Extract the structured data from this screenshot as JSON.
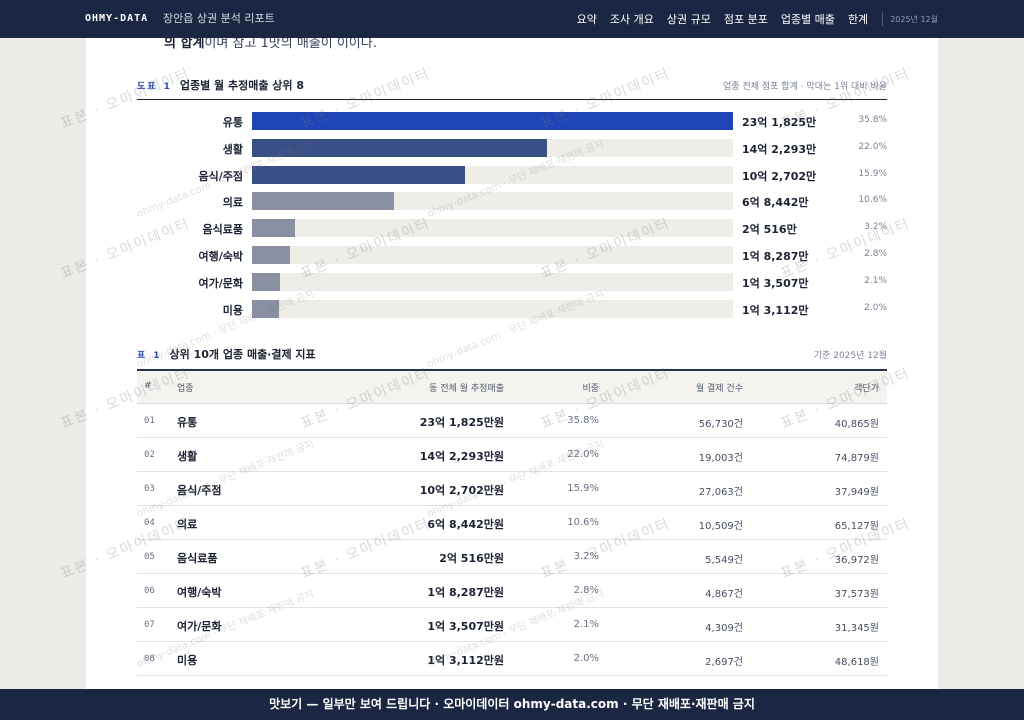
{
  "header": {
    "brand": "OHMY-DATA",
    "report_title": "장안읍 상권 분석 리포트",
    "nav": [
      "요약",
      "조사 개요",
      "상권 규모",
      "점포 분포",
      "업종별 매출",
      "한계"
    ],
    "date": "2025년 12월"
  },
  "intro": {
    "bold": "의 합계",
    "rest": "이며 참고 1맛의 매출이 이이다."
  },
  "figure1": {
    "tag": "도표",
    "num": "1",
    "title": "업종별 월 추정매출 상위 8",
    "note": "업종 전체 점포 합계 · 막대는 1위 대비 비율"
  },
  "chart_data": {
    "type": "bar",
    "orientation": "horizontal",
    "title": "업종별 월 추정매출 상위 8",
    "categories": [
      "유통",
      "생활",
      "음식/주점",
      "의료",
      "음식료품",
      "여행/숙박",
      "여가/문화",
      "미용"
    ],
    "value_labels": [
      "23억 1,825만",
      "14억 2,293만",
      "10억 2,702만",
      "6억 8,442만",
      "2억 516만",
      "1억 8,287만",
      "1억 3,507만",
      "1억 3,112만"
    ],
    "values": [
      231825,
      142293,
      102702,
      68442,
      20516,
      18287,
      13507,
      13112
    ],
    "share_labels": [
      "35.8%",
      "22.0%",
      "15.9%",
      "10.6%",
      "3.2%",
      "2.8%",
      "2.1%",
      "2.0%"
    ],
    "xlim": [
      0,
      231825
    ],
    "colors": [
      "#1f44b8",
      "#3a4f86",
      "#3a4f86",
      "#8a90a1",
      "#8a90a1",
      "#8a90a1",
      "#8a90a1",
      "#8a90a1"
    ],
    "track_color": "#efede8"
  },
  "table1": {
    "tag": "표",
    "num": "1",
    "title": "상위 10개 업종 매출·결제 지표",
    "note": "기준 2025년 12월",
    "headers": [
      "#",
      "업종",
      "동 전체 월 추정매출",
      "비중",
      "월 결제 건수",
      "객단가"
    ],
    "rows": [
      {
        "n": "01",
        "name": "유통",
        "sales": "23억 1,825만원",
        "share": "35.8%",
        "count": "56,730건",
        "avg": "40,865원"
      },
      {
        "n": "02",
        "name": "생활",
        "sales": "14억 2,293만원",
        "share": "22.0%",
        "count": "19,003건",
        "avg": "74,879원"
      },
      {
        "n": "03",
        "name": "음식/주점",
        "sales": "10억 2,702만원",
        "share": "15.9%",
        "count": "27,063건",
        "avg": "37,949원"
      },
      {
        "n": "04",
        "name": "의료",
        "sales": "6억 8,442만원",
        "share": "10.6%",
        "count": "10,509건",
        "avg": "65,127원"
      },
      {
        "n": "05",
        "name": "음식료품",
        "sales": "2억 516만원",
        "share": "3.2%",
        "count": "5,549건",
        "avg": "36,972원"
      },
      {
        "n": "06",
        "name": "여행/숙박",
        "sales": "1억 8,287만원",
        "share": "2.8%",
        "count": "4,867건",
        "avg": "37,573원"
      },
      {
        "n": "07",
        "name": "여가/문화",
        "sales": "1억 3,507만원",
        "share": "2.1%",
        "count": "4,309건",
        "avg": "31,345원"
      },
      {
        "n": "08",
        "name": "미용",
        "sales": "1억 3,112만원",
        "share": "2.0%",
        "count": "2,697건",
        "avg": "48,618원"
      }
    ]
  },
  "watermark": {
    "main": "표본 · 오마이데이터",
    "sub": "ohmy-data.com · 무단 재배포·재판매 금지"
  },
  "banner": {
    "text": "맛보기 — 일부만 보여 드립니다 · 오마이데이터 ohmy-data.com · 무단 재배포·재판매 금지"
  }
}
